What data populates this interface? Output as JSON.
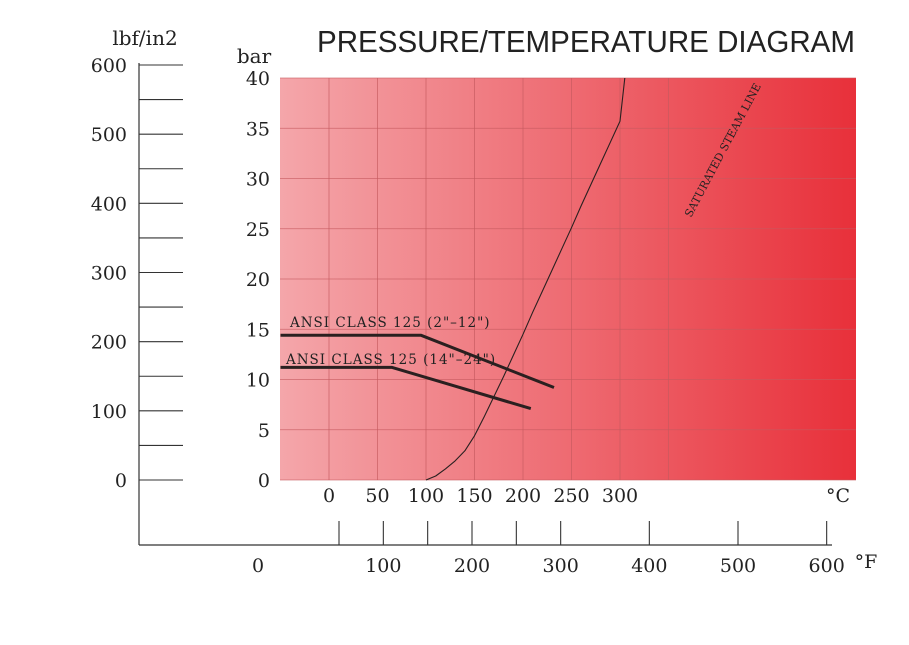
{
  "chart_data": {
    "type": "line",
    "title": "PRESSURE/TEMPERATURE DIAGRAM",
    "colors": {
      "gradient_start": "#f4a6aa",
      "gradient_end": "#e8303a",
      "grid": "#c65a5f",
      "line": "#2a2020",
      "text": "#222222"
    },
    "bar_axis": {
      "unit": "bar",
      "ylim": [
        0,
        40
      ],
      "ticks": [
        0,
        5,
        10,
        15,
        20,
        25,
        30,
        35,
        40
      ],
      "tick_labels": [
        "0",
        "5",
        "10",
        "15",
        "20",
        "25",
        "30",
        "35",
        "40"
      ]
    },
    "psi_axis": {
      "unit": "lbf/in2",
      "ticks": [
        0,
        100,
        200,
        300,
        400,
        500,
        600
      ],
      "tick_labels": [
        "0",
        "100",
        "200",
        "300",
        "400",
        "500",
        "600"
      ],
      "minor_ticks": [
        50,
        150,
        250,
        350,
        450,
        550
      ]
    },
    "celsius_axis": {
      "unit": "°C",
      "xlim": [
        -50,
        330
      ],
      "ticks": [
        0,
        50,
        100,
        150,
        200,
        250,
        300
      ],
      "tick_labels": [
        "0",
        "50",
        "100",
        "150",
        "200",
        "250",
        "300"
      ]
    },
    "fahrenheit_axis": {
      "unit": "°F",
      "ticks": [
        0,
        100,
        200,
        300,
        400,
        500,
        600
      ],
      "tick_labels": [
        "0",
        "100",
        "200",
        "300",
        "400",
        "500",
        "600"
      ],
      "minor_ticks": [
        50,
        150,
        250
      ]
    },
    "grid": true,
    "series": [
      {
        "name": "ANSI CLASS 125 (2\"–12\")",
        "x": [
          -50,
          95,
          232
        ],
        "y": [
          14.4,
          14.4,
          9.2
        ]
      },
      {
        "name": "ANSI CLASS 125 (14\"–24\")",
        "x": [
          -50,
          65,
          208
        ],
        "y": [
          11.2,
          11.2,
          7.1
        ]
      },
      {
        "name": "SATURATED STEAM LINE",
        "x": [
          100,
          110,
          120,
          130,
          140,
          150,
          160,
          170,
          180,
          190,
          200,
          210,
          220,
          230,
          240,
          250,
          260,
          270,
          280,
          290,
          300,
          305
        ],
        "y": [
          0,
          0.4,
          1.1,
          1.9,
          2.9,
          4.4,
          6.3,
          8.3,
          10.3,
          12.4,
          14.5,
          16.7,
          18.8,
          20.9,
          23.0,
          25.1,
          27.3,
          29.4,
          31.5,
          33.6,
          35.7,
          40
        ]
      }
    ]
  }
}
